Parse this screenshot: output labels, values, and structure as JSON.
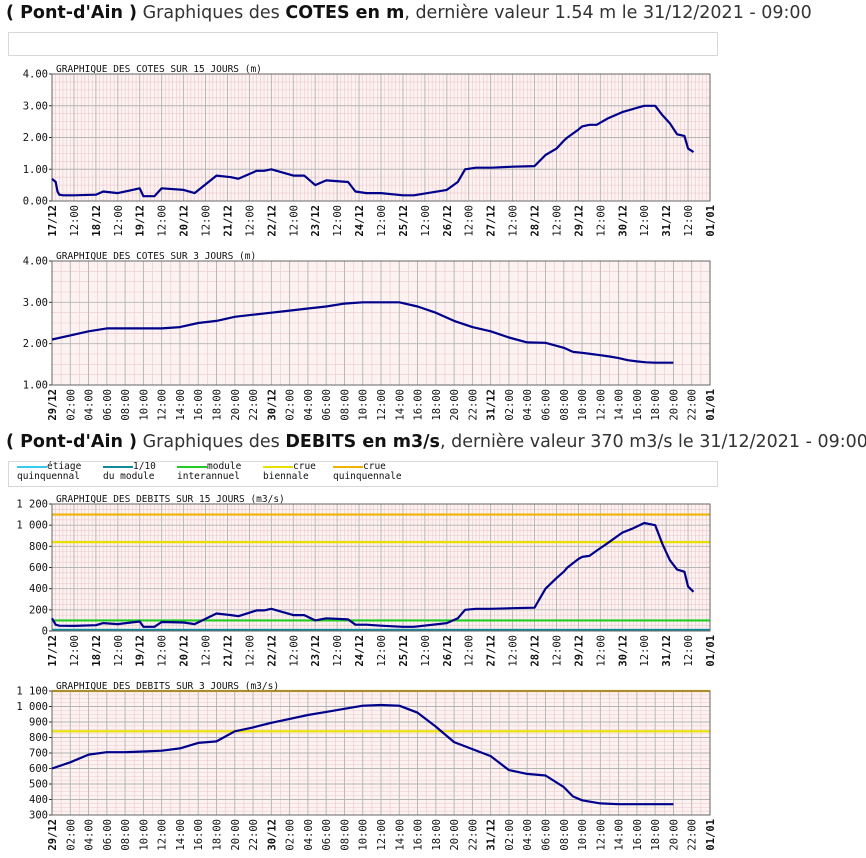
{
  "cotes_header": {
    "station": "( Pont-d'Ain )",
    "prefix": "Graphiques des",
    "title": "COTES en m",
    "suffix": ", dernière valeur 1.54 m le 31/12/2021 - 09:00"
  },
  "debits_header": {
    "station": "( Pont-d'Ain )",
    "prefix": "Graphiques des",
    "title": "DEBITS en m3/s",
    "suffix": ", dernière valeur 370 m3/s le 31/12/2021 - 09:00"
  },
  "legend": [
    {
      "line1": "étiage",
      "line2": "quinquennal",
      "color": "#33ccee"
    },
    {
      "line1": "1/10",
      "line2": "du module",
      "color": "#118899"
    },
    {
      "line1": "module",
      "line2": "interannuel",
      "color": "#22cc22"
    },
    {
      "line1": "crue",
      "line2": "biennale",
      "color": "#e8e000"
    },
    {
      "line1": "crue",
      "line2": "quinquennale",
      "color": "#f0b400"
    }
  ],
  "colors": {
    "series": "#00008b",
    "plot_bg": "#fdf2f2",
    "minor_grid": "#ecc8c8",
    "major_grid": "#b4b4b4"
  },
  "chart_data": [
    {
      "type": "line",
      "title": "GRAPHIQUE DES COTES SUR 15 JOURS (m)",
      "ylim": [
        0,
        4
      ],
      "yticks": [
        "0.00",
        "1.00",
        "2.00",
        "3.00",
        "4.00"
      ],
      "xticks": [
        "17/12",
        "12:00",
        "18/12",
        "12:00",
        "19/12",
        "12:00",
        "20/12",
        "12:00",
        "21/12",
        "12:00",
        "22/12",
        "12:00",
        "23/12",
        "12:00",
        "24/12",
        "12:00",
        "25/12",
        "12:00",
        "26/12",
        "12:00",
        "27/12",
        "12:00",
        "28/12",
        "12:00",
        "29/12",
        "12:00",
        "30/12",
        "12:00",
        "31/12",
        "12:00",
        "01/01"
      ],
      "x_unit": "hours since 17/12 00:00",
      "series": [
        {
          "x": [
            0,
            2,
            3,
            4,
            6,
            12,
            24,
            28,
            36,
            48,
            50,
            56,
            60,
            72,
            78,
            90,
            98,
            102,
            112,
            116,
            120,
            132,
            138,
            144,
            150,
            162,
            166,
            172,
            180,
            192,
            198,
            216,
            222,
            226,
            232,
            240,
            240.5,
            252,
            264,
            270,
            276,
            280,
            282,
            288,
            290,
            294,
            298,
            304,
            312,
            318,
            324,
            330,
            334,
            338,
            342,
            346,
            348,
            351
          ],
          "values": [
            0.7,
            0.6,
            0.3,
            0.2,
            0.18,
            0.18,
            0.2,
            0.3,
            0.25,
            0.4,
            0.15,
            0.15,
            0.4,
            0.35,
            0.25,
            0.8,
            0.75,
            0.7,
            0.95,
            0.95,
            1.0,
            0.8,
            0.8,
            0.5,
            0.65,
            0.6,
            0.3,
            0.25,
            0.25,
            0.18,
            0.18,
            0.35,
            0.6,
            1.0,
            1.05,
            1.05,
            1.05,
            1.08,
            1.1,
            1.45,
            1.65,
            1.9,
            2.0,
            2.25,
            2.35,
            2.4,
            2.4,
            2.6,
            2.8,
            2.9,
            3.0,
            3.0,
            2.7,
            2.45,
            2.1,
            2.05,
            1.65,
            1.54
          ]
        }
      ]
    },
    {
      "type": "line",
      "title": "GRAPHIQUE DES COTES SUR 3 JOURS (m)",
      "ylim": [
        1,
        4
      ],
      "yticks": [
        "1.00",
        "2.00",
        "3.00",
        "4.00"
      ],
      "xticks": [
        "29/12",
        "02:00",
        "04:00",
        "06:00",
        "08:00",
        "10:00",
        "12:00",
        "14:00",
        "16:00",
        "18:00",
        "20:00",
        "22:00",
        "30/12",
        "02:00",
        "04:00",
        "06:00",
        "08:00",
        "10:00",
        "12:00",
        "14:00",
        "16:00",
        "18:00",
        "20:00",
        "22:00",
        "31/12",
        "02:00",
        "04:00",
        "06:00",
        "08:00",
        "10:00",
        "12:00",
        "14:00",
        "16:00",
        "18:00",
        "20:00",
        "22:00",
        "01/01"
      ],
      "x_unit": "hours since 29/12 00:00",
      "series": [
        {
          "x": [
            0,
            2,
            4,
            6,
            8,
            10,
            12,
            14,
            16,
            18,
            20,
            22,
            24,
            26,
            28,
            30,
            32,
            34,
            36,
            38,
            40,
            42,
            44,
            46,
            48,
            50,
            52,
            54,
            56,
            57
          ],
          "values": [
            2.1,
            2.2,
            2.3,
            2.37,
            2.37,
            2.37,
            2.37,
            2.4,
            2.5,
            2.55,
            2.65,
            2.7,
            2.75,
            2.8,
            2.85,
            2.9,
            2.97,
            3.0,
            3.0,
            3.0,
            2.9,
            2.75,
            2.55,
            2.4,
            2.3,
            2.15,
            2.03,
            2.02,
            1.9,
            1.8
          ]
        },
        {
          "x": [
            57,
            58,
            59,
            60,
            61,
            62,
            63,
            64,
            65,
            66,
            67,
            68
          ],
          "values": [
            1.8,
            1.78,
            1.75,
            1.72,
            1.69,
            1.65,
            1.6,
            1.57,
            1.55,
            1.54,
            1.54,
            1.54
          ]
        }
      ]
    },
    {
      "type": "line",
      "title": "GRAPHIQUE DES DEBITS SUR 15 JOURS (m3/s)",
      "ylim": [
        0,
        1200
      ],
      "yticks": [
        "0",
        "200",
        "400",
        "600",
        "800",
        "1 000",
        "1 200"
      ],
      "xticks": [
        "17/12",
        "12:00",
        "18/12",
        "12:00",
        "19/12",
        "12:00",
        "20/12",
        "12:00",
        "21/12",
        "12:00",
        "22/12",
        "12:00",
        "23/12",
        "12:00",
        "24/12",
        "12:00",
        "25/12",
        "12:00",
        "26/12",
        "12:00",
        "27/12",
        "12:00",
        "28/12",
        "12:00",
        "29/12",
        "12:00",
        "30/12",
        "12:00",
        "31/12",
        "12:00",
        "01/01"
      ],
      "x_unit": "hours since 17/12 00:00",
      "thresholds": [
        {
          "name": "étiage quinquennal",
          "value": 10,
          "color": "#33ccee"
        },
        {
          "name": "1/10 du module",
          "value": 10,
          "color": "#118899"
        },
        {
          "name": "module interannuel",
          "value": 100,
          "color": "#22cc22"
        },
        {
          "name": "crue biennale",
          "value": 840,
          "color": "#e8e000"
        },
        {
          "name": "crue quinquennale",
          "value": 1100,
          "color": "#f0b400"
        }
      ],
      "series": [
        {
          "x": [
            0,
            2,
            4,
            12,
            24,
            28,
            36,
            48,
            50,
            56,
            60,
            72,
            78,
            90,
            98,
            102,
            112,
            116,
            120,
            132,
            138,
            144,
            150,
            162,
            166,
            172,
            180,
            192,
            198,
            216,
            222,
            226,
            232,
            240,
            252,
            264,
            270,
            276,
            280,
            282,
            288,
            290,
            294,
            298,
            304,
            312,
            318,
            324,
            330,
            334,
            338,
            342,
            346,
            348,
            351
          ],
          "values": [
            120,
            60,
            50,
            48,
            55,
            75,
            65,
            90,
            40,
            40,
            85,
            80,
            65,
            165,
            150,
            140,
            195,
            195,
            210,
            150,
            150,
            100,
            120,
            110,
            60,
            60,
            50,
            40,
            40,
            75,
            120,
            200,
            210,
            210,
            215,
            220,
            400,
            500,
            560,
            600,
            680,
            700,
            710,
            760,
            830,
            930,
            970,
            1020,
            1000,
            820,
            670,
            580,
            560,
            420,
            370
          ]
        }
      ]
    },
    {
      "type": "line",
      "title": "GRAPHIQUE DES DEBITS SUR 3 JOURS (m3/s)",
      "ylim": [
        300,
        1100
      ],
      "yticks": [
        "300",
        "400",
        "500",
        "600",
        "700",
        "800",
        "900",
        "1 000",
        "1 100"
      ],
      "xticks": [
        "29/12",
        "02:00",
        "04:00",
        "06:00",
        "08:00",
        "10:00",
        "12:00",
        "14:00",
        "16:00",
        "18:00",
        "20:00",
        "22:00",
        "30/12",
        "02:00",
        "04:00",
        "06:00",
        "08:00",
        "10:00",
        "12:00",
        "14:00",
        "16:00",
        "18:00",
        "20:00",
        "22:00",
        "31/12",
        "02:00",
        "04:00",
        "06:00",
        "08:00",
        "10:00",
        "12:00",
        "14:00",
        "16:00",
        "18:00",
        "20:00",
        "22:00",
        "01/01"
      ],
      "x_unit": "hours since 29/12 00:00",
      "thresholds": [
        {
          "name": "crue biennale",
          "value": 840,
          "color": "#e8e000"
        },
        {
          "name": "crue quinquennale",
          "value": 1100,
          "color": "#f0b400"
        }
      ],
      "series": [
        {
          "x": [
            0,
            2,
            4,
            6,
            8,
            10,
            12,
            14,
            16,
            18,
            20,
            22,
            24,
            26,
            28,
            30,
            32,
            34,
            36,
            38,
            40,
            42,
            44,
            46,
            48,
            50,
            52,
            54,
            56,
            57,
            58,
            60,
            62,
            64,
            66,
            68
          ],
          "values": [
            600,
            640,
            690,
            705,
            705,
            710,
            715,
            730,
            765,
            775,
            840,
            865,
            895,
            920,
            945,
            965,
            985,
            1005,
            1010,
            1005,
            960,
            870,
            770,
            725,
            680,
            590,
            565,
            555,
            480,
            420,
            395,
            375,
            370,
            370,
            370,
            370
          ]
        }
      ]
    }
  ]
}
